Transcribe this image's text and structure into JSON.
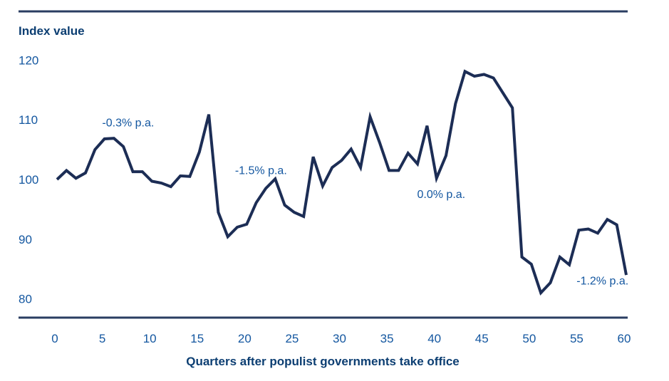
{
  "chart_data": {
    "type": "line",
    "title": "",
    "ylabel": "Index value",
    "xlabel": "Quarters after populist governments take office",
    "ylim": [
      80,
      120
    ],
    "xlim": [
      0,
      60
    ],
    "grid": false,
    "legend": "none",
    "y_ticks": [
      "120",
      "110",
      "100",
      "90",
      "80"
    ],
    "y_tick_values": [
      120,
      110,
      100,
      90,
      80
    ],
    "x_ticks": [
      "0",
      "5",
      "10",
      "15",
      "20",
      "25",
      "30",
      "35",
      "40",
      "45",
      "50",
      "55",
      "60"
    ],
    "x_tick_values": [
      0,
      5,
      10,
      15,
      20,
      25,
      30,
      35,
      40,
      45,
      50,
      55,
      60
    ],
    "series": [
      {
        "name": "Index value",
        "color": "#1c2d55",
        "x": [
          0,
          1,
          2,
          3,
          4,
          5,
          6,
          7,
          8,
          9,
          10,
          11,
          12,
          13,
          14,
          15,
          16,
          17,
          18,
          19,
          20,
          21,
          22,
          23,
          24,
          25,
          26,
          27,
          28,
          29,
          30,
          31,
          32,
          33,
          34,
          35,
          36,
          37,
          38,
          39,
          40,
          41,
          42,
          43,
          44,
          45,
          46,
          47,
          48,
          49,
          50,
          51,
          52,
          53,
          54,
          55,
          56,
          57,
          58,
          59,
          60
        ],
        "values": [
          100.0,
          101.5,
          100.2,
          101.1,
          105.0,
          106.8,
          106.9,
          105.5,
          101.3,
          101.3,
          99.7,
          99.4,
          98.8,
          100.6,
          100.5,
          104.6,
          110.9,
          94.5,
          90.4,
          92.0,
          92.5,
          96.1,
          98.5,
          100.1,
          95.7,
          94.5,
          93.8,
          103.8,
          98.9,
          102.0,
          103.2,
          105.1,
          102.0,
          110.5,
          106.2,
          101.5,
          101.5,
          104.4,
          102.6,
          109.0,
          100.2,
          104.0,
          112.7,
          118.1,
          117.3,
          117.6,
          117.0,
          114.5,
          112.0,
          87.0,
          85.8,
          81.0,
          82.7,
          87.0,
          85.7,
          91.5,
          91.7,
          91.0,
          93.3,
          92.4,
          84.0
        ]
      }
    ],
    "annotations": [
      {
        "text": "-0.3% p.a.",
        "x": 7.5,
        "y": 109.5
      },
      {
        "text": "-1.5% p.a.",
        "x": 21.5,
        "y": 101.5
      },
      {
        "text": "0.0% p.a.",
        "x": 40.5,
        "y": 97.5
      },
      {
        "text": "-1.2% p.a.",
        "x": 57.5,
        "y": 83.0
      }
    ]
  }
}
